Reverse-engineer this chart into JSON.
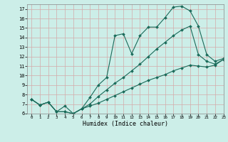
{
  "bg_color": "#cceee8",
  "line_color": "#1a6b5a",
  "grid_color": "#d4aaaa",
  "xlabel": "Humidex (Indice chaleur)",
  "xlim": [
    -0.5,
    23
  ],
  "ylim": [
    6,
    17.5
  ],
  "yticks": [
    6,
    7,
    8,
    9,
    10,
    11,
    12,
    13,
    14,
    15,
    16,
    17
  ],
  "xticks": [
    0,
    1,
    2,
    3,
    4,
    5,
    6,
    7,
    8,
    9,
    10,
    11,
    12,
    13,
    14,
    15,
    16,
    17,
    18,
    19,
    20,
    21,
    22,
    23
  ],
  "curve1_x": [
    0,
    1,
    2,
    3,
    4,
    5,
    6,
    7,
    8,
    9,
    10,
    11,
    12,
    13,
    14,
    15,
    16,
    17,
    18,
    19,
    20,
    21,
    22,
    23
  ],
  "curve1_y": [
    7.5,
    6.9,
    7.2,
    6.2,
    6.8,
    6.0,
    6.5,
    7.7,
    9.0,
    9.8,
    14.2,
    14.4,
    12.3,
    14.2,
    15.1,
    15.1,
    16.1,
    17.2,
    17.3,
    16.8,
    15.2,
    12.2,
    11.5,
    11.8
  ],
  "curve2_x": [
    0,
    1,
    2,
    3,
    4,
    5,
    6,
    7,
    8,
    9,
    10,
    11,
    12,
    13,
    14,
    15,
    16,
    17,
    18,
    19,
    20,
    21,
    22,
    23
  ],
  "curve2_y": [
    7.5,
    6.9,
    7.2,
    6.2,
    6.2,
    6.0,
    6.5,
    7.0,
    7.8,
    8.5,
    9.2,
    9.8,
    10.5,
    11.2,
    12.0,
    12.8,
    13.5,
    14.2,
    14.8,
    15.2,
    12.2,
    11.5,
    11.2,
    11.7
  ],
  "curve3_x": [
    0,
    1,
    2,
    3,
    4,
    5,
    6,
    7,
    8,
    9,
    10,
    11,
    12,
    13,
    14,
    15,
    16,
    17,
    18,
    19,
    20,
    21,
    22,
    23
  ],
  "curve3_y": [
    7.5,
    6.9,
    7.2,
    6.2,
    6.2,
    6.0,
    6.5,
    6.8,
    7.1,
    7.5,
    7.9,
    8.3,
    8.7,
    9.1,
    9.5,
    9.8,
    10.1,
    10.5,
    10.8,
    11.1,
    11.0,
    10.9,
    11.1,
    11.7
  ]
}
